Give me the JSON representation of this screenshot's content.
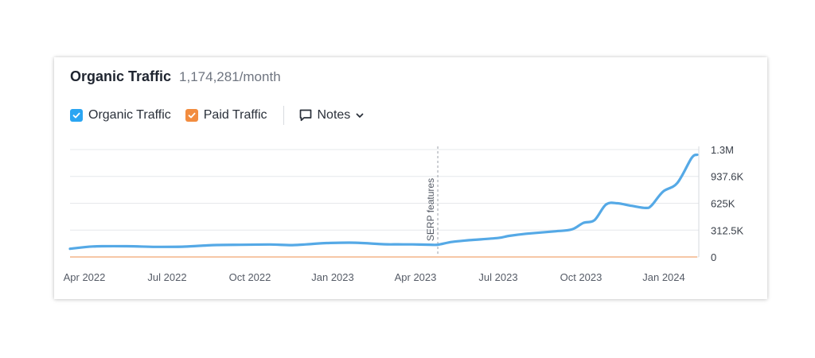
{
  "header": {
    "title": "Organic Traffic",
    "value": "1,174,281/month"
  },
  "legend": {
    "organic_label": "Organic Traffic",
    "paid_label": "Paid Traffic",
    "notes_label": "Notes"
  },
  "colors": {
    "organic": "#55a9e6",
    "organic_checkbox": "#2aa5f2",
    "paid": "#f28c3f",
    "paid_line": "#f6c7a6"
  },
  "icons": {
    "organic_check": "check-icon",
    "paid_check": "check-icon",
    "notes": "comment-icon",
    "notes_toggle": "chevron-down-icon"
  },
  "chart_data": {
    "type": "line",
    "y_ticks": [
      {
        "value": 1250000,
        "label": "1.3M"
      },
      {
        "value": 937600,
        "label": "937.6K"
      },
      {
        "value": 625000,
        "label": "625K"
      },
      {
        "value": 312500,
        "label": "312.5K"
      },
      {
        "value": 0,
        "label": "0"
      }
    ],
    "ylim": [
      0,
      1250000
    ],
    "x_ticks": [
      "Apr 2022",
      "Jul 2022",
      "Oct 2022",
      "Jan 2023",
      "Apr 2023",
      "Jul 2023",
      "Oct 2023",
      "Jan 2024"
    ],
    "xlim": [
      0,
      22
    ],
    "grid": true,
    "annotation": {
      "x": 12.9,
      "label": "SERP features"
    },
    "series": [
      {
        "name": "Organic Traffic",
        "x": [
          0,
          0.8,
          2,
          3,
          4,
          5,
          6,
          7,
          7.8,
          8.5,
          9,
          10,
          11,
          11.5,
          12,
          12.6,
          12.9,
          13.4,
          14,
          15,
          15.4,
          16,
          17,
          17.6,
          18,
          18.4,
          18.8,
          19.2,
          19.7,
          20.2,
          20.4,
          20.8,
          21.3,
          21.8,
          22
        ],
        "y": [
          95000,
          122000,
          125000,
          118000,
          120000,
          138000,
          142000,
          145000,
          138000,
          152000,
          162000,
          166000,
          148000,
          147000,
          146000,
          143000,
          143000,
          175000,
          195000,
          220000,
          245000,
          270000,
          298000,
          320000,
          395000,
          430000,
          610000,
          625000,
          595000,
          570000,
          600000,
          760000,
          860000,
          1150000,
          1190000
        ]
      },
      {
        "name": "Paid Traffic",
        "x": [
          0,
          22
        ],
        "y": [
          0,
          0
        ]
      }
    ]
  }
}
